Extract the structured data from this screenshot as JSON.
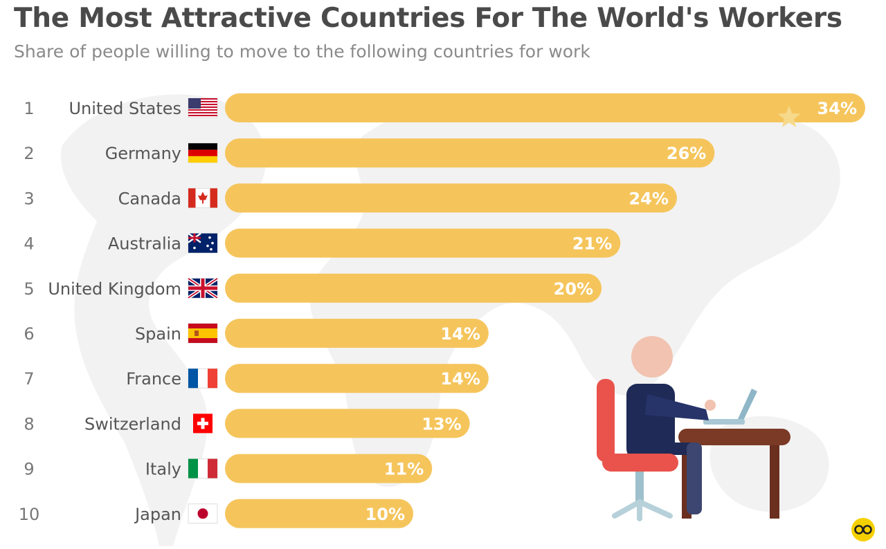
{
  "title": "The Most Attractive Countries For The World's Workers",
  "subtitle": "Share of people willing to move to the following countries for work",
  "colors": {
    "bar": "#f5c55c",
    "label_text": "#ffffff",
    "country_text": "#555555",
    "rank_text": "#777777",
    "background_map": "#f2f2f2"
  },
  "chart_data": {
    "type": "bar",
    "orientation": "horizontal",
    "categories": [
      "United States",
      "Germany",
      "Canada",
      "Australia",
      "United Kingdom",
      "Spain",
      "France",
      "Switzerland",
      "Italy",
      "Japan"
    ],
    "ranks": [
      "1",
      "2",
      "3",
      "4",
      "5",
      "6",
      "7",
      "8",
      "9",
      "10"
    ],
    "values": [
      34,
      26,
      24,
      21,
      20,
      14,
      14,
      13,
      11,
      10
    ],
    "value_labels": [
      "34%",
      "26%",
      "24%",
      "21%",
      "20%",
      "14%",
      "14%",
      "13%",
      "11%",
      "10%"
    ],
    "flags": [
      "us-flag-icon",
      "de-flag-icon",
      "ca-flag-icon",
      "au-flag-icon",
      "gb-flag-icon",
      "es-flag-icon",
      "fr-flag-icon",
      "ch-flag-icon",
      "it-flag-icon",
      "jp-flag-icon"
    ],
    "xlim": [
      0,
      34
    ],
    "grid": false,
    "legend": "none",
    "xlabel": "",
    "ylabel": ""
  }
}
